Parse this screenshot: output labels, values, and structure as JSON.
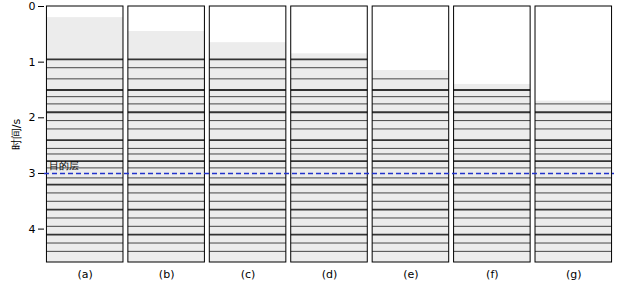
{
  "chart_data": {
    "type": "seismic_panels",
    "y_label": "时间/s",
    "categories": [
      "(a)",
      "(b)",
      "(c)",
      "(d)",
      "(e)",
      "(f)",
      "(g)"
    ],
    "mute_times": [
      0.2,
      0.45,
      0.65,
      0.85,
      1.15,
      1.4,
      1.7
    ],
    "reflectors": [
      0.95,
      1.1,
      1.3,
      1.5,
      1.62,
      1.75,
      1.9,
      2.05,
      2.2,
      2.4,
      2.55,
      2.65,
      2.78,
      2.9,
      3.08,
      3.2,
      3.35,
      3.5,
      3.65,
      3.8,
      3.95,
      4.1,
      4.25,
      4.4
    ],
    "color": "#333333",
    "target": {
      "label": "目的层",
      "value": 3.0,
      "color": "#2233cc",
      "line_style": "dashed"
    },
    "ylim": [
      0,
      4.6
    ],
    "yticks": [
      0,
      1,
      2,
      3,
      4
    ]
  }
}
